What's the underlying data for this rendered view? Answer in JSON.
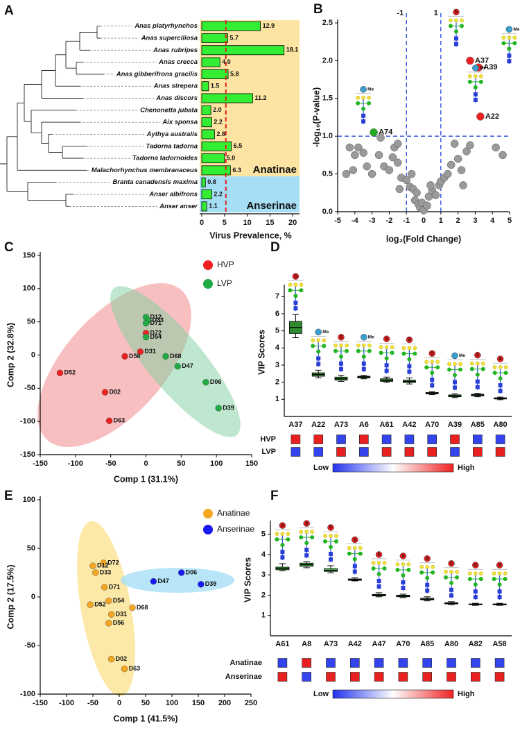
{
  "chart_data": [
    {
      "type": "hbar",
      "panel": "A",
      "categories": [
        "Anas platyrhynchos",
        "Anas superciliosa",
        "Anas rubripes",
        "Anas crecca",
        "Anas gibberifrons gracilis",
        "Anas strepera",
        "Anas discors",
        "Chenonetta jubata",
        "Aix sponsa",
        "Aythya australis",
        "Tadorna tadorna",
        "Tadorna tadornoides",
        "Malachorhynchus membranaceus",
        "Branta canadensis maxima",
        "Anser albifrons",
        "Anser anser"
      ],
      "values": [
        12.9,
        5.7,
        18.1,
        4.0,
        5.8,
        1.5,
        11.2,
        2.0,
        2.2,
        2.8,
        6.5,
        5.0,
        6.3,
        0.8,
        2.2,
        1.1
      ],
      "value_labels": [
        "12.9",
        "5.7",
        "18.1",
        "4.0",
        "5.8",
        "1.5",
        "11.2",
        "2.0",
        "2.2",
        "2.8",
        "6.5",
        "5.0",
        "6.3",
        "0.8",
        "2.2",
        "1.1"
      ],
      "color": "#33ee33",
      "xlim": [
        0,
        21.5
      ],
      "xticks": [
        0,
        5,
        10,
        15,
        20
      ],
      "xlabel": "Virus Prevalence, %",
      "reference_line": 5.3,
      "reference_color": "#e02020",
      "groups": [
        {
          "name": "Anatinae",
          "color": "#fde4a2",
          "label_color": "#7a5b10",
          "count": 13
        },
        {
          "name": "Anserinae",
          "color": "#a6def6",
          "label_color": "#1f3f66",
          "count": 3
        }
      ]
    },
    {
      "type": "volcano",
      "panel": "B",
      "xlabel": "log₂(Fold Change)",
      "ylabel": "-log₁₀(P-value)",
      "xlim": [
        -5,
        5
      ],
      "ylim": [
        0,
        2.5
      ],
      "xticks": [
        -5,
        -4,
        -3,
        -2,
        -1,
        0,
        1,
        2,
        3,
        4,
        5
      ],
      "yticks": [
        {
          "value": 0,
          "label": "0.0"
        },
        0.5,
        {
          "value": 1,
          "label": "1.0"
        },
        1.5,
        {
          "value": 2,
          "label": "2.0"
        },
        2.5
      ],
      "vlines": [
        -1,
        1
      ],
      "hline": 1,
      "line_color": "#2244dd",
      "series": [
        {
          "color": "#9a9a9a",
          "x": [
            -4.3,
            -4.0,
            -3.8,
            -4.1,
            -3.5,
            -3.3,
            -4.5,
            -3.0,
            -2.6,
            -2.3,
            -2.0,
            -1.8,
            -1.7,
            -1.5,
            -1.3,
            -1.0,
            -0.8,
            -0.6,
            -0.4,
            -0.5,
            -0.3,
            -0.2,
            0,
            -0.1,
            0.2,
            0.3,
            0.5,
            0.7,
            0.9,
            1.0,
            1.2,
            1.4,
            1.6,
            2.0,
            2.2,
            2.5,
            2.7,
            2.3,
            1.8,
            -1.4,
            -0.7,
            0.4,
            4.2,
            4.6,
            -2.5,
            -1.5
          ],
          "y": [
            0.85,
            0.75,
            0.85,
            0.55,
            0.78,
            0.6,
            0.5,
            0.5,
            0.75,
            0.6,
            0.55,
            0.72,
            0.85,
            0.65,
            0.45,
            0.42,
            0.33,
            0.3,
            0.25,
            0.15,
            0.1,
            0.05,
            0.02,
            0.12,
            0.08,
            0.2,
            0.28,
            0.22,
            0.35,
            0.4,
            0.45,
            0.5,
            0.62,
            0.7,
            0.55,
            0.8,
            0.88,
            0.35,
            0.9,
            0.3,
            0.5,
            0.35,
            0.85,
            0.75,
            0.98,
            0.9
          ]
        },
        {
          "color": "#ee2222",
          "x": [
            2.7,
            3.2,
            3.3
          ],
          "y": [
            2.0,
            1.91,
            1.26
          ],
          "labels": [
            "A37",
            "A39",
            "A22"
          ],
          "tags": [
            "S",
            "Me",
            "Me"
          ]
        },
        {
          "color": "#22aa22",
          "x": [
            -2.9
          ],
          "y": [
            1.05
          ],
          "labels": [
            "A74"
          ],
          "tags": [
            "Me"
          ]
        }
      ]
    },
    {
      "type": "scatter",
      "panel": "C",
      "xlabel": "Comp 1 (31.1%)",
      "ylabel": "Comp 2 (32.8%)",
      "xlim": [
        -150,
        150
      ],
      "ylim": [
        -150,
        150
      ],
      "xticks": [
        -150,
        -100,
        -50,
        0,
        50,
        100,
        150
      ],
      "yticks": [
        -150,
        -100,
        -50,
        0,
        50,
        100,
        150
      ],
      "series": [
        {
          "name": "HVP",
          "color": "#ee2222",
          "x": [
            0,
            -8,
            -30,
            -122,
            -58,
            -52
          ],
          "y": [
            33,
            5,
            -2,
            -27,
            -56,
            -99
          ],
          "labels": [
            "D72",
            "D31",
            "D56",
            "D52",
            "D02",
            "D63"
          ]
        },
        {
          "name": "LVP",
          "color": "#22aa44",
          "x": [
            0,
            3,
            0,
            0,
            28,
            45,
            85,
            103
          ],
          "y": [
            57,
            52,
            48,
            27,
            -2,
            -17,
            -41,
            -80
          ],
          "labels": [
            "D12",
            "D33",
            "D71",
            "D54",
            "D68",
            "D47",
            "D06",
            "D39"
          ]
        }
      ]
    },
    {
      "type": "box",
      "panel": "D",
      "ylabel": "VIP Scores",
      "categories": [
        "A37",
        "A22",
        "A73",
        "A6",
        "A61",
        "A42",
        "A70",
        "A39",
        "A85",
        "A80"
      ],
      "min": [
        4.6,
        2.25,
        2.05,
        2.2,
        2.0,
        1.9,
        1.28,
        1.1,
        1.15,
        0.98
      ],
      "q1": [
        4.85,
        2.35,
        2.12,
        2.25,
        2.05,
        1.98,
        1.32,
        1.15,
        1.2,
        1.02
      ],
      "median": [
        5.2,
        2.45,
        2.2,
        2.3,
        2.1,
        2.05,
        1.36,
        1.2,
        1.25,
        1.05
      ],
      "q3": [
        5.55,
        2.55,
        2.3,
        2.35,
        2.2,
        2.12,
        1.4,
        1.26,
        1.3,
        1.09
      ],
      "max": [
        5.95,
        2.7,
        2.4,
        2.4,
        2.3,
        2.25,
        1.45,
        1.32,
        1.35,
        1.13
      ],
      "tags": [
        "S",
        "Me",
        "S",
        "Me",
        "S",
        "S",
        "S",
        "Me",
        "S",
        "S"
      ],
      "color": "#2e8b2e",
      "ylim": [
        0,
        7.5
      ],
      "yticks": [
        1,
        2,
        3,
        4,
        5,
        6,
        7
      ],
      "heatmap": [
        {
          "name": "HVP",
          "colors": [
            "#e82020",
            "#e82020",
            "#3344ee",
            "#e82020",
            "#3344ee",
            "#3344ee",
            "#3344ee",
            "#e82020",
            "#3344ee",
            "#3344ee"
          ]
        },
        {
          "name": "LVP",
          "colors": [
            "#3344ee",
            "#3344ee",
            "#e82020",
            "#3344ee",
            "#e82020",
            "#e82020",
            "#e82020",
            "#3344ee",
            "#e82020",
            "#e82020"
          ]
        }
      ],
      "colorbar": {
        "low": "Low",
        "high": "High"
      }
    },
    {
      "type": "scatter",
      "panel": "E",
      "xlabel": "Comp 1 (41.5%)",
      "ylabel": "Comp 2 (17.5%)",
      "xlim": [
        -150,
        250
      ],
      "ylim": [
        -100,
        100
      ],
      "xticks": [
        -150,
        -100,
        -50,
        0,
        50,
        100,
        150,
        200,
        250
      ],
      "yticks": [
        -100,
        -50,
        0,
        50,
        100
      ],
      "series": [
        {
          "name": "Anatinae",
          "color": "#f5a623",
          "x": [
            -30,
            -50,
            -45,
            -28,
            -20,
            -55,
            -15,
            -20,
            25,
            -15,
            10
          ],
          "y": [
            35,
            32,
            25,
            10,
            -4,
            -8,
            -18,
            -27,
            -11,
            -64,
            -74
          ],
          "labels": [
            "D72",
            "D12",
            "D33",
            "D71",
            "D54",
            "D52",
            "D31",
            "D56",
            "D68",
            "D02",
            "D63"
          ]
        },
        {
          "name": "Anserinae",
          "color": "#1a1aee",
          "x": [
            65,
            118,
            155
          ],
          "y": [
            16,
            25,
            13
          ],
          "labels": [
            "D47",
            "D06",
            "D39"
          ]
        }
      ]
    },
    {
      "type": "box",
      "panel": "F",
      "ylabel": "VIP Scores",
      "categories": [
        "A61",
        "A8",
        "A73",
        "A42",
        "A47",
        "A70",
        "A85",
        "A80",
        "A82",
        "A58"
      ],
      "min": [
        3.2,
        3.35,
        3.1,
        2.7,
        1.92,
        1.88,
        1.72,
        1.53,
        1.5,
        1.5
      ],
      "q1": [
        3.25,
        3.42,
        3.17,
        2.73,
        1.96,
        1.92,
        1.77,
        1.57,
        1.53,
        1.52
      ],
      "median": [
        3.3,
        3.5,
        3.22,
        2.76,
        2.0,
        1.96,
        1.8,
        1.6,
        1.55,
        1.55
      ],
      "q3": [
        3.38,
        3.58,
        3.3,
        2.8,
        2.04,
        2.0,
        1.85,
        1.63,
        1.57,
        1.57
      ],
      "max": [
        3.55,
        3.65,
        3.45,
        2.85,
        2.12,
        2.05,
        1.92,
        1.68,
        1.6,
        1.6
      ],
      "tags": [
        "S",
        "S",
        "S",
        "S",
        "S",
        "S",
        "S",
        "S",
        "S",
        "S"
      ],
      "color": "#3da33d",
      "ylim": [
        0,
        5.5
      ],
      "yticks": [
        1,
        2,
        3,
        4,
        5
      ],
      "heatmap": [
        {
          "name": "Anatinae",
          "colors": [
            "#3344ee",
            "#e82020",
            "#3344ee",
            "#3344ee",
            "#3344ee",
            "#3344ee",
            "#3344ee",
            "#3344ee",
            "#3344ee",
            "#3344ee"
          ]
        },
        {
          "name": "Anserinae",
          "colors": [
            "#e82020",
            "#3344ee",
            "#e82020",
            "#e82020",
            "#e82020",
            "#e82020",
            "#e82020",
            "#e82020",
            "#e82020",
            "#e82020"
          ]
        }
      ],
      "colorbar": {
        "low": "Low",
        "high": "High"
      }
    }
  ]
}
